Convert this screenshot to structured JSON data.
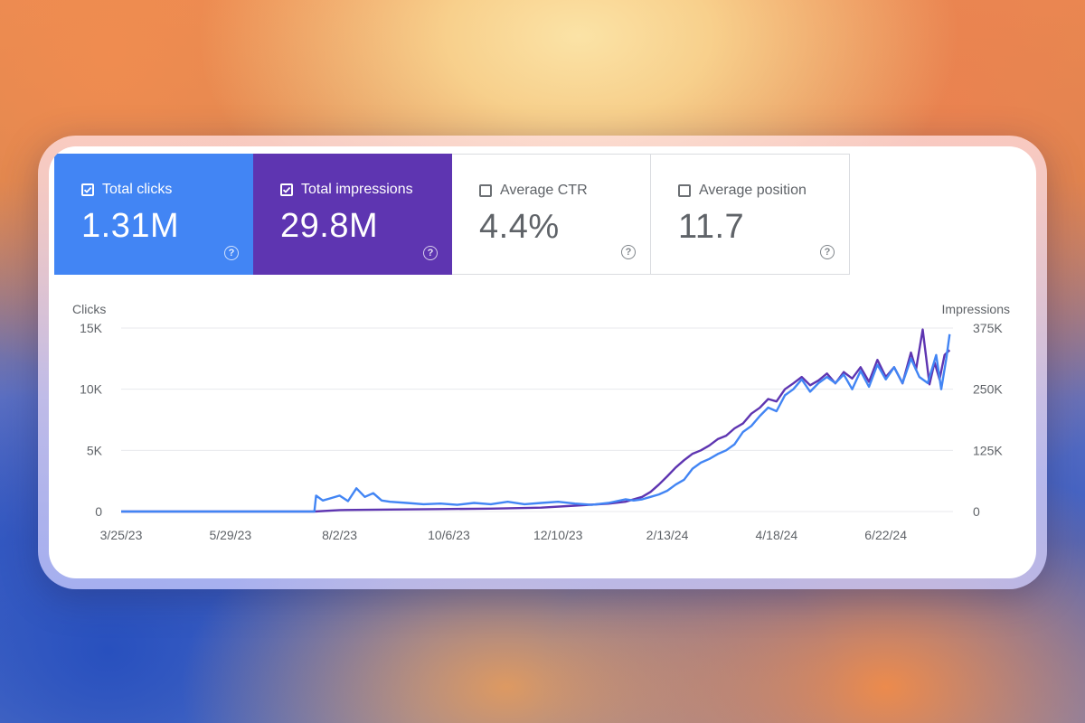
{
  "metrics": [
    {
      "label": "Total clicks",
      "value": "1.31M",
      "checked": true,
      "color": "#4285f4"
    },
    {
      "label": "Total impressions",
      "value": "29.8M",
      "checked": true,
      "color": "#5e35b1"
    },
    {
      "label": "Average CTR",
      "value": "4.4%",
      "checked": false
    },
    {
      "label": "Average position",
      "value": "11.7",
      "checked": false
    }
  ],
  "help_glyph": "?",
  "chart_data": {
    "type": "line",
    "left_axis_title": "Clicks",
    "right_axis_title": "Impressions",
    "left_ticks": [
      "0",
      "5K",
      "10K",
      "15K"
    ],
    "right_ticks": [
      "0",
      "125K",
      "250K",
      "375K"
    ],
    "ylim_left": [
      0,
      15000
    ],
    "ylim_right": [
      0,
      375000
    ],
    "x_tick_labels": [
      "3/25/23",
      "5/29/23",
      "8/2/23",
      "10/6/23",
      "12/10/23",
      "2/13/24",
      "4/18/24",
      "6/22/24"
    ],
    "x_tick_days": [
      0,
      65,
      130,
      195,
      260,
      325,
      390,
      455
    ],
    "x_range_days": [
      0,
      495
    ],
    "series": [
      {
        "name": "Total clicks",
        "axis": "left",
        "color": "#4285f4",
        "x": [
          0,
          100,
          115,
          116,
          120,
          125,
          130,
          135,
          140,
          145,
          150,
          155,
          160,
          170,
          180,
          190,
          200,
          210,
          220,
          230,
          240,
          250,
          260,
          270,
          280,
          290,
          300,
          305,
          310,
          315,
          320,
          325,
          330,
          335,
          340,
          345,
          350,
          355,
          360,
          365,
          370,
          375,
          380,
          385,
          390,
          395,
          400,
          405,
          410,
          415,
          420,
          425,
          430,
          435,
          440,
          445,
          450,
          455,
          460,
          465,
          470,
          475,
          480,
          485,
          488,
          491,
          493
        ],
        "values": [
          0,
          0,
          0,
          1300,
          900,
          1100,
          1300,
          850,
          1900,
          1200,
          1500,
          900,
          800,
          700,
          600,
          650,
          550,
          700,
          600,
          800,
          600,
          700,
          800,
          650,
          550,
          700,
          1000,
          900,
          1000,
          1200,
          1400,
          1700,
          2200,
          2600,
          3500,
          4000,
          4300,
          4700,
          5000,
          5500,
          6500,
          7000,
          7800,
          8500,
          8200,
          9500,
          10000,
          10800,
          9800,
          10500,
          11000,
          10500,
          11200,
          10000,
          11500,
          10200,
          12000,
          10800,
          11800,
          10500,
          12500,
          11000,
          10500,
          12800,
          10000,
          12500,
          14500
        ]
      },
      {
        "name": "Total impressions",
        "axis": "right",
        "color": "#5e35b1",
        "x": [
          0,
          100,
          115,
          130,
          160,
          190,
          220,
          250,
          270,
          290,
          300,
          310,
          315,
          320,
          325,
          330,
          335,
          340,
          345,
          350,
          355,
          360,
          365,
          370,
          375,
          380,
          385,
          390,
          395,
          400,
          405,
          410,
          415,
          420,
          425,
          430,
          435,
          440,
          445,
          450,
          455,
          460,
          465,
          470,
          473,
          477,
          481,
          484,
          487,
          490,
          493
        ],
        "values": [
          0,
          0,
          0,
          3000,
          4000,
          5000,
          6000,
          8000,
          12000,
          16000,
          20000,
          30000,
          40000,
          55000,
          72000,
          90000,
          105000,
          118000,
          125000,
          135000,
          148000,
          155000,
          170000,
          180000,
          200000,
          212000,
          230000,
          225000,
          250000,
          262000,
          275000,
          258000,
          268000,
          282000,
          262000,
          285000,
          272000,
          295000,
          265000,
          310000,
          275000,
          295000,
          262000,
          325000,
          290000,
          372000,
          260000,
          305000,
          270000,
          320000,
          330000
        ]
      }
    ]
  }
}
